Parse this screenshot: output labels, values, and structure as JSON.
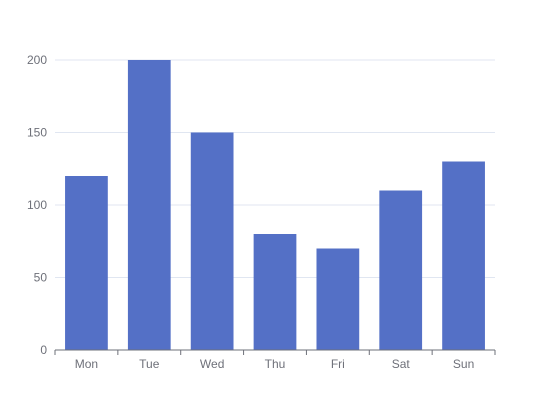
{
  "chart_data": {
    "type": "bar",
    "categories": [
      "Mon",
      "Tue",
      "Wed",
      "Thu",
      "Fri",
      "Sat",
      "Sun"
    ],
    "values": [
      120,
      200,
      150,
      80,
      70,
      110,
      130
    ],
    "y_ticks": [
      "0",
      "50",
      "100",
      "150",
      "200"
    ],
    "ylim": [
      0,
      200
    ],
    "grid": true,
    "bar_color": "#5470c6",
    "title": "",
    "xlabel": "",
    "ylabel": ""
  }
}
